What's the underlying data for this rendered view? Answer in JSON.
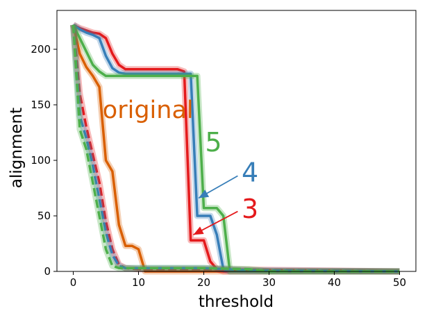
{
  "chart_data": {
    "type": "line",
    "title": "",
    "xlabel": "threshold",
    "ylabel": "alignment",
    "xlim": [
      -2.5,
      52.5
    ],
    "ylim": [
      0,
      235
    ],
    "xticks": [
      0,
      10,
      20,
      30,
      40,
      50
    ],
    "yticks": [
      0,
      50,
      100,
      150,
      200
    ],
    "grid": false,
    "colors": {
      "original": "#d95f02",
      "k3": "#e41a1c",
      "k4": "#377eb8",
      "k5": "#4daf4a"
    },
    "series": [
      {
        "color": "#d95f02",
        "style": "solid",
        "x": [
          0,
          1,
          2,
          3,
          4,
          5,
          6,
          7,
          8,
          9,
          10,
          11,
          50
        ],
        "y": [
          222,
          196,
          184,
          176,
          166,
          100,
          90,
          42,
          23,
          23,
          20,
          0,
          0
        ]
      },
      {
        "color": "#e41a1c",
        "style": "solid",
        "x": [
          0,
          1,
          2,
          3,
          4,
          5,
          6,
          7,
          8,
          16,
          17,
          18,
          19,
          20,
          21,
          22,
          23,
          50
        ],
        "y": [
          222,
          219,
          217,
          215,
          214,
          210,
          196,
          186,
          182,
          182,
          180,
          28,
          28,
          28,
          9,
          2,
          0,
          0
        ]
      },
      {
        "color": "#377eb8",
        "style": "solid",
        "x": [
          0,
          1,
          2,
          3,
          4,
          5,
          6,
          7,
          8,
          17,
          18,
          19,
          20,
          21,
          22,
          23,
          24,
          50
        ],
        "y": [
          222,
          218,
          215,
          213,
          210,
          194,
          183,
          179,
          178,
          178,
          178,
          50,
          50,
          50,
          33,
          2,
          0,
          0
        ]
      },
      {
        "color": "#4daf4a",
        "style": "solid",
        "x": [
          0,
          1,
          2,
          3,
          4,
          5,
          6,
          7,
          19,
          20,
          21,
          22,
          23,
          24,
          25,
          28,
          50
        ],
        "y": [
          222,
          210,
          198,
          186,
          180,
          176,
          176,
          176,
          176,
          57,
          57,
          57,
          50,
          0,
          0,
          0,
          0
        ]
      },
      {
        "color": "#e41a1c",
        "style": "dashed",
        "x": [
          0,
          1,
          2,
          3,
          4,
          5,
          6,
          7,
          8,
          10,
          20,
          50
        ],
        "y": [
          222,
          160,
          130,
          105,
          80,
          45,
          20,
          6,
          3,
          2,
          2,
          0
        ]
      },
      {
        "color": "#377eb8",
        "style": "dashed",
        "x": [
          0,
          1,
          2,
          3,
          4,
          5,
          6,
          7,
          8,
          10,
          20,
          27,
          50
        ],
        "y": [
          222,
          140,
          120,
          95,
          65,
          35,
          15,
          5,
          3,
          3,
          3,
          1,
          0
        ]
      },
      {
        "color": "#4daf4a",
        "style": "dashed",
        "x": [
          0,
          1,
          2,
          3,
          4,
          5,
          6,
          7,
          10,
          20,
          27,
          30,
          50
        ],
        "y": [
          222,
          128,
          110,
          80,
          50,
          20,
          5,
          3,
          3,
          3,
          2,
          0,
          0
        ]
      }
    ],
    "annotations": [
      {
        "text": "original",
        "color": "#d95f02",
        "x": 4.5,
        "y": 138
      },
      {
        "text": "5",
        "color": "#4daf4a",
        "x": 20.2,
        "y": 108
      },
      {
        "text": "4",
        "color": "#377eb8",
        "x": 25.8,
        "y": 81
      },
      {
        "text": "3",
        "color": "#e41a1c",
        "x": 25.8,
        "y": 48
      }
    ],
    "arrows": [
      {
        "color": "#377eb8",
        "from": [
          25.2,
          86
        ],
        "to": [
          19.2,
          66
        ]
      },
      {
        "color": "#e41a1c",
        "from": [
          25.2,
          54
        ],
        "to": [
          18.4,
          33
        ]
      }
    ]
  }
}
